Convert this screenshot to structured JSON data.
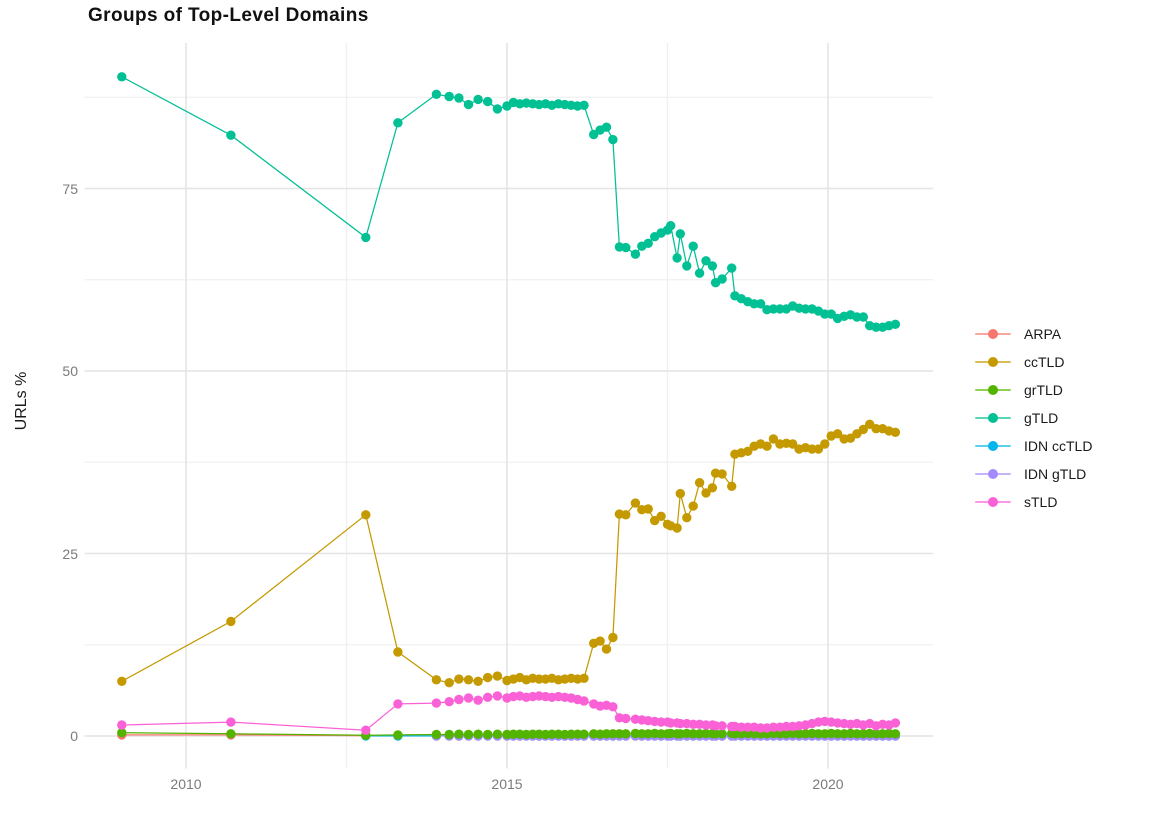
{
  "chart_data": {
    "type": "scatter",
    "title": "Groups of Top-Level Domains",
    "xlabel": "",
    "ylabel": "URLs %",
    "x_ticks": [
      2010,
      2015,
      2020
    ],
    "x_minor_ticks": [
      2012.5,
      2017.5
    ],
    "y_ticks": [
      0,
      25,
      50,
      75
    ],
    "y_minor_ticks": [
      12.5,
      37.5,
      62.5,
      87.5
    ],
    "xlim": [
      2008.4,
      2021.6
    ],
    "ylim": [
      -4.4,
      94.9
    ],
    "grid": "on",
    "legend_position": "right",
    "legend_order": [
      "ARPA",
      "ccTLD",
      "grTLD",
      "gTLD",
      "IDN ccTLD",
      "IDN gTLD",
      "sTLD"
    ],
    "draw_order": [
      "ARPA",
      "IDN ccTLD",
      "IDN gTLD",
      "grTLD",
      "ccTLD",
      "gTLD",
      "sTLD"
    ],
    "colors": {
      "ARPA": "#F8766D",
      "ccTLD": "#C49A00",
      "grTLD": "#53B400",
      "gTLD": "#00C094",
      "IDN ccTLD": "#00B6EB",
      "IDN gTLD": "#A58AFF",
      "sTLD": "#FB61D7"
    },
    "x": [
      2009.0,
      2010.7,
      2012.8,
      2013.3,
      2013.9,
      2014.1,
      2014.25,
      2014.4,
      2014.55,
      2014.7,
      2014.85,
      2015.0,
      2015.1,
      2015.2,
      2015.3,
      2015.4,
      2015.5,
      2015.6,
      2015.7,
      2015.8,
      2015.9,
      2016.0,
      2016.1,
      2016.2,
      2016.35,
      2016.45,
      2016.55,
      2016.65,
      2016.75,
      2016.85,
      2017.0,
      2017.1,
      2017.2,
      2017.3,
      2017.4,
      2017.5,
      2017.55,
      2017.65,
      2017.7,
      2017.8,
      2017.9,
      2018.0,
      2018.1,
      2018.2,
      2018.25,
      2018.35,
      2018.5,
      2018.55,
      2018.65,
      2018.75,
      2018.85,
      2018.95,
      2019.05,
      2019.15,
      2019.25,
      2019.35,
      2019.45,
      2019.55,
      2019.65,
      2019.75,
      2019.85,
      2019.95,
      2020.05,
      2020.15,
      2020.25,
      2020.35,
      2020.45,
      2020.55,
      2020.65,
      2020.75,
      2020.85,
      2020.95,
      2021.05
    ],
    "series": [
      {
        "name": "ARPA",
        "values": [
          0.15,
          0.15,
          0.05,
          0.02,
          0.02,
          0.02,
          0.02,
          0.02,
          0.02,
          0.02,
          0.02,
          0.02,
          0.02,
          0.02,
          0.02,
          0.02,
          0.02,
          0.02,
          0.02,
          0.02,
          0.02,
          0.02,
          0.02,
          0.02,
          0.02,
          0.02,
          0.02,
          0.02,
          0.02,
          0.02,
          0.02,
          0.02,
          0.02,
          0.02,
          0.02,
          0.02,
          0.02,
          0.02,
          0.02,
          0.02,
          0.02,
          0.02,
          0.02,
          0.02,
          0.02,
          0.02,
          0.02,
          0.02,
          0.02,
          0.02,
          0.02,
          0.02,
          0.02,
          0.02,
          0.02,
          0.02,
          0.02,
          0.02,
          0.02,
          0.02,
          0.02,
          0.02,
          0.02,
          0.02,
          0.02,
          0.02,
          0.02,
          0.02,
          0.02,
          0.02,
          0.02,
          0.02,
          0.02
        ]
      },
      {
        "name": "ccTLD",
        "values": [
          7.5,
          15.7,
          30.3,
          11.5,
          7.7,
          7.3,
          7.8,
          7.7,
          7.5,
          8.0,
          8.2,
          7.6,
          7.8,
          8.0,
          7.7,
          7.9,
          7.8,
          7.8,
          7.9,
          7.7,
          7.8,
          7.9,
          7.8,
          7.9,
          12.7,
          13.0,
          11.9,
          13.5,
          30.4,
          30.3,
          31.9,
          31.0,
          31.1,
          29.5,
          30.1,
          29.0,
          28.8,
          28.5,
          33.2,
          29.9,
          31.5,
          34.7,
          33.3,
          34.0,
          36.0,
          35.9,
          34.2,
          38.6,
          38.8,
          39.0,
          39.7,
          40.0,
          39.7,
          40.7,
          40.0,
          40.1,
          40.0,
          39.3,
          39.5,
          39.3,
          39.3,
          40.0,
          41.1,
          41.4,
          40.7,
          40.8,
          41.4,
          42.0,
          42.7,
          42.1,
          42.1,
          41.8,
          41.6
        ]
      },
      {
        "name": "grTLD",
        "values": [
          0.45,
          0.3,
          0.1,
          0.15,
          0.2,
          0.2,
          0.25,
          0.2,
          0.25,
          0.2,
          0.25,
          0.2,
          0.25,
          0.25,
          0.2,
          0.25,
          0.25,
          0.2,
          0.25,
          0.25,
          0.2,
          0.25,
          0.25,
          0.25,
          0.3,
          0.25,
          0.3,
          0.3,
          0.3,
          0.3,
          0.35,
          0.3,
          0.3,
          0.35,
          0.3,
          0.3,
          0.35,
          0.3,
          0.3,
          0.35,
          0.3,
          0.3,
          0.35,
          0.3,
          0.3,
          0.3,
          0.35,
          0.3,
          0.3,
          0.35,
          0.3,
          0.3,
          0.3,
          0.35,
          0.3,
          0.3,
          0.35,
          0.3,
          0.3,
          0.35,
          0.3,
          0.3,
          0.35,
          0.3,
          0.3,
          0.35,
          0.3,
          0.3,
          0.35,
          0.3,
          0.3,
          0.35,
          0.3
        ]
      },
      {
        "name": "gTLD",
        "values": [
          90.3,
          82.3,
          68.3,
          84.0,
          87.9,
          87.6,
          87.4,
          86.5,
          87.2,
          86.9,
          85.9,
          86.3,
          86.8,
          86.6,
          86.7,
          86.6,
          86.5,
          86.6,
          86.4,
          86.6,
          86.5,
          86.4,
          86.3,
          86.4,
          82.4,
          83.0,
          83.4,
          81.7,
          67.0,
          66.9,
          66.0,
          67.1,
          67.5,
          68.4,
          68.9,
          69.3,
          69.9,
          65.5,
          68.8,
          64.4,
          67.1,
          63.4,
          65.1,
          64.4,
          62.1,
          62.6,
          64.1,
          60.3,
          59.9,
          59.5,
          59.2,
          59.2,
          58.4,
          58.5,
          58.5,
          58.5,
          58.9,
          58.6,
          58.5,
          58.5,
          58.2,
          57.8,
          57.8,
          57.2,
          57.5,
          57.7,
          57.4,
          57.4,
          56.2,
          56.0,
          56.0,
          56.2,
          56.4
        ]
      },
      {
        "name": "IDN ccTLD",
        "values": [
          null,
          null,
          0.02,
          0.02,
          0.02,
          0.02,
          0.02,
          0.02,
          0.02,
          0.02,
          0.02,
          0.02,
          0.02,
          0.02,
          0.02,
          0.02,
          0.02,
          0.02,
          0.02,
          0.02,
          0.02,
          0.02,
          0.02,
          0.02,
          0.02,
          0.02,
          0.02,
          0.02,
          0.02,
          0.02,
          0.02,
          0.02,
          0.02,
          0.02,
          0.02,
          0.02,
          0.02,
          0.02,
          0.02,
          0.02,
          0.02,
          0.02,
          0.02,
          0.02,
          0.02,
          0.02,
          0.02,
          0.02,
          0.02,
          0.02,
          0.02,
          0.02,
          0.02,
          0.02,
          0.02,
          0.02,
          0.02,
          0.02,
          0.02,
          0.02,
          0.02,
          0.02,
          0.02,
          0.02,
          0.02,
          0.02,
          0.02,
          0.02,
          0.02,
          0.02,
          0.02,
          0.02,
          0.02
        ]
      },
      {
        "name": "IDN gTLD",
        "values": [
          null,
          null,
          null,
          null,
          0.02,
          0.02,
          0.02,
          0.02,
          0.02,
          0.02,
          0.02,
          0.02,
          0.02,
          0.02,
          0.02,
          0.02,
          0.02,
          0.02,
          0.02,
          0.02,
          0.02,
          0.02,
          0.02,
          0.02,
          0.02,
          0.02,
          0.02,
          0.02,
          0.02,
          0.02,
          0.02,
          0.02,
          0.02,
          0.02,
          0.02,
          0.02,
          0.02,
          0.02,
          0.02,
          0.02,
          0.02,
          0.02,
          0.02,
          0.02,
          0.02,
          0.02,
          0.02,
          0.02,
          0.02,
          0.02,
          0.02,
          0.02,
          0.02,
          0.02,
          0.02,
          0.02,
          0.02,
          0.02,
          0.02,
          0.02,
          0.02,
          0.02,
          0.02,
          0.02,
          0.02,
          0.02,
          0.02,
          0.02,
          0.02,
          0.02,
          0.02,
          0.02,
          0.02
        ]
      },
      {
        "name": "sTLD",
        "values": [
          1.5,
          1.9,
          0.8,
          4.4,
          4.5,
          4.7,
          5.0,
          5.2,
          4.9,
          5.3,
          5.5,
          5.2,
          5.4,
          5.5,
          5.3,
          5.4,
          5.5,
          5.4,
          5.3,
          5.4,
          5.3,
          5.2,
          5.0,
          4.8,
          4.4,
          4.1,
          4.2,
          4.0,
          2.5,
          2.4,
          2.3,
          2.2,
          2.1,
          2.0,
          1.9,
          1.9,
          1.8,
          1.8,
          1.7,
          1.7,
          1.6,
          1.6,
          1.5,
          1.5,
          1.4,
          1.4,
          1.3,
          1.3,
          1.2,
          1.2,
          1.2,
          1.1,
          1.1,
          1.2,
          1.2,
          1.3,
          1.3,
          1.4,
          1.5,
          1.7,
          1.9,
          2.0,
          1.9,
          1.8,
          1.7,
          1.6,
          1.7,
          1.5,
          1.7,
          1.4,
          1.6,
          1.5,
          1.8
        ]
      }
    ]
  }
}
